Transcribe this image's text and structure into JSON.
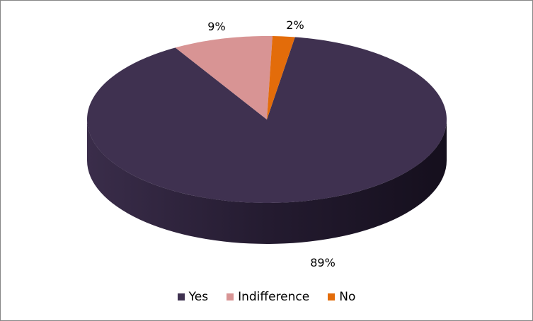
{
  "chart_data": {
    "type": "pie",
    "style": "3d",
    "categories": [
      "Yes",
      "Indifference",
      "No"
    ],
    "values": [
      89,
      9,
      2
    ],
    "labels": [
      "89%",
      "9%",
      "2%"
    ],
    "colors": [
      "#3f3150",
      "#d89494",
      "#e36c0a"
    ],
    "legend": "bottom"
  }
}
